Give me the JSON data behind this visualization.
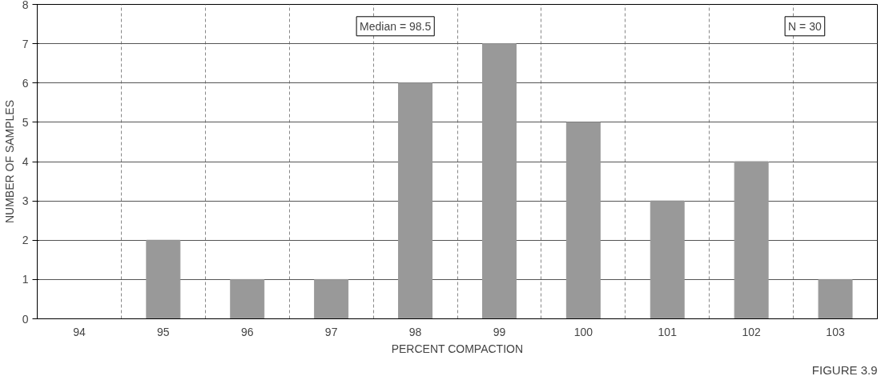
{
  "chart_data": {
    "type": "bar",
    "xlabel": "PERCENT COMPACTION",
    "ylabel": "NUMBER OF SAMPLES",
    "categories": [
      "94",
      "95",
      "96",
      "97",
      "98",
      "99",
      "100",
      "101",
      "102",
      "103"
    ],
    "values": [
      0,
      2,
      1,
      1,
      6,
      7,
      5,
      3,
      4,
      1
    ],
    "color": "#999999",
    "ylim": [
      0,
      8
    ],
    "yticks": [
      0,
      1,
      2,
      3,
      4,
      5,
      6,
      7,
      8
    ],
    "grid": true,
    "annotations": [
      "Median = 98.5",
      "N = 30",
      "FIGURE 3.9"
    ]
  }
}
